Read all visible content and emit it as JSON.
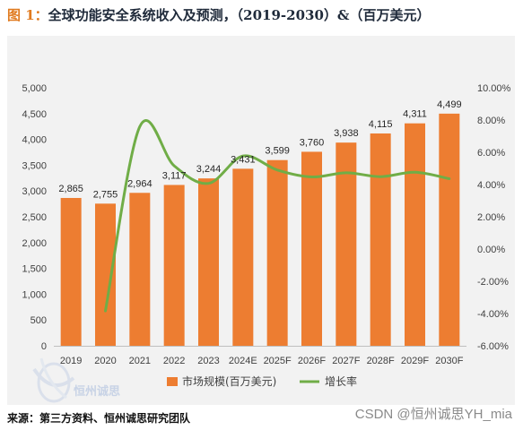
{
  "title": {
    "label": "图 1：",
    "text": "全球功能安全系统收入及预测，（2019-2030）&（百万美元）"
  },
  "source": "来源：第三方资料、恒州诚思研究团队",
  "watermark": "CSDN @恒州诚思YH_mia",
  "logo": {
    "text": "恒州诚思",
    "icon": "globe-swoosh-icon"
  },
  "colors": {
    "bar": "#ed7d31",
    "line": "#70ad47",
    "background": "#f2f2f2"
  },
  "chart_data": {
    "type": "bar",
    "categories": [
      "2019",
      "2020",
      "2021",
      "2022",
      "2023",
      "2024E",
      "2025F",
      "2026F",
      "2027F",
      "2028F",
      "2029F",
      "2030F"
    ],
    "series": [
      {
        "name": "市场规模(百万美元)",
        "type": "bar",
        "axis": "left",
        "values": [
          2865,
          2755,
          2964,
          3117,
          3244,
          3431,
          3599,
          3760,
          3938,
          4115,
          4311,
          4499
        ],
        "labels": [
          "2,865",
          "2,755",
          "2,964",
          "3,117",
          "3,244",
          "3,431",
          "3,599",
          "3,760",
          "3,938",
          "4,115",
          "4,311",
          "4,499"
        ]
      },
      {
        "name": "增长率",
        "type": "line",
        "axis": "right",
        "smooth": true,
        "values": [
          null,
          -3.84,
          7.59,
          5.16,
          4.07,
          5.77,
          4.9,
          4.47,
          4.73,
          4.49,
          4.76,
          4.36
        ]
      }
    ],
    "y_left": {
      "min": 0,
      "max": 5000,
      "step": 500,
      "ticks": [
        "0",
        "500",
        "1,000",
        "1,500",
        "2,000",
        "2,500",
        "3,000",
        "3,500",
        "4,000",
        "4,500",
        "5,000"
      ]
    },
    "y_right": {
      "min": -6,
      "max": 10,
      "step": 2,
      "ticks": [
        "-6.00%",
        "-4.00%",
        "-2.00%",
        "0.00%",
        "2.00%",
        "4.00%",
        "6.00%",
        "8.00%",
        "10.00%"
      ]
    },
    "grid": false,
    "legend": "bottom"
  }
}
